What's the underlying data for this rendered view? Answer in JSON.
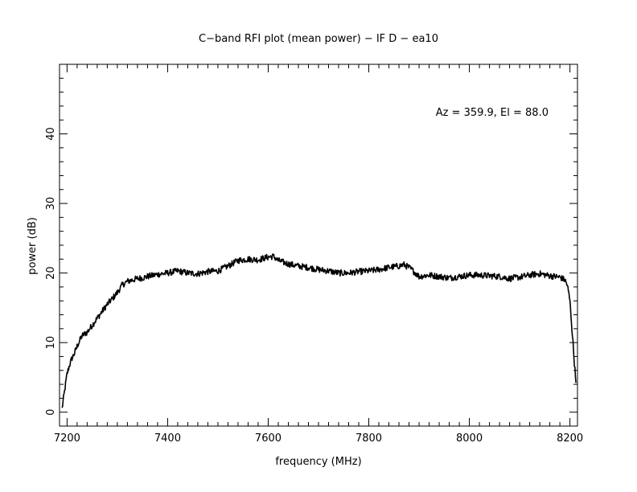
{
  "chart_data": {
    "type": "line",
    "title": "C−band RFI plot (mean power) − IF D − ea10",
    "annotation": "Az = 359.9, El = 88.0",
    "xlabel": "frequency (MHz)",
    "ylabel": "power (dB)",
    "xlim": [
      7185,
      8215
    ],
    "ylim": [
      -2,
      50
    ],
    "x_ticks": [
      7200,
      7400,
      7600,
      7800,
      8000,
      8200
    ],
    "y_ticks": [
      0,
      10,
      20,
      30,
      40
    ],
    "x_tick_labels": [
      "7200",
      "7400",
      "7600",
      "7800",
      "8000",
      "8200"
    ],
    "y_tick_labels": [
      "0",
      "10",
      "20",
      "30",
      "40"
    ],
    "grid": false,
    "series": [
      {
        "x": [
          7190,
          7193,
          7197,
          7200,
          7205,
          7210,
          7215,
          7220,
          7230,
          7240,
          7250,
          7260,
          7270,
          7280,
          7290,
          7300,
          7310,
          7320,
          7330,
          7340,
          7350,
          7360,
          7380,
          7400,
          7420,
          7440,
          7460,
          7480,
          7500,
          7520,
          7540,
          7560,
          7580,
          7600,
          7610,
          7620,
          7640,
          7660,
          7680,
          7700,
          7720,
          7740,
          7760,
          7780,
          7800,
          7820,
          7840,
          7860,
          7870,
          7880,
          7890,
          7900,
          7920,
          7940,
          7960,
          7980,
          8000,
          8020,
          8040,
          8060,
          8080,
          8100,
          8120,
          8140,
          8160,
          8180,
          8190,
          8195,
          8200,
          8203,
          8206,
          8209,
          8212
        ],
        "y": [
          0.5,
          2,
          4,
          5.5,
          6.8,
          7.8,
          8.5,
          9.5,
          11,
          11.5,
          12.5,
          13.5,
          14.5,
          15.5,
          16.3,
          17.2,
          18.3,
          18.8,
          19,
          19.2,
          19.3,
          19.5,
          19.8,
          20,
          20.3,
          20,
          19.9,
          20.2,
          20.3,
          21,
          21.8,
          22,
          21.9,
          22.3,
          22.4,
          21.8,
          21.3,
          21,
          20.8,
          20.5,
          20.3,
          20,
          20,
          20.2,
          20.3,
          20.5,
          20.8,
          21,
          21.2,
          20.8,
          20.2,
          19.5,
          19.7,
          19.5,
          19.3,
          19.5,
          19.7,
          19.7,
          19.6,
          19.5,
          19.2,
          19.4,
          19.7,
          19.9,
          19.6,
          19.4,
          19,
          18.2,
          16,
          13,
          10,
          7,
          4.2
        ]
      }
    ]
  }
}
